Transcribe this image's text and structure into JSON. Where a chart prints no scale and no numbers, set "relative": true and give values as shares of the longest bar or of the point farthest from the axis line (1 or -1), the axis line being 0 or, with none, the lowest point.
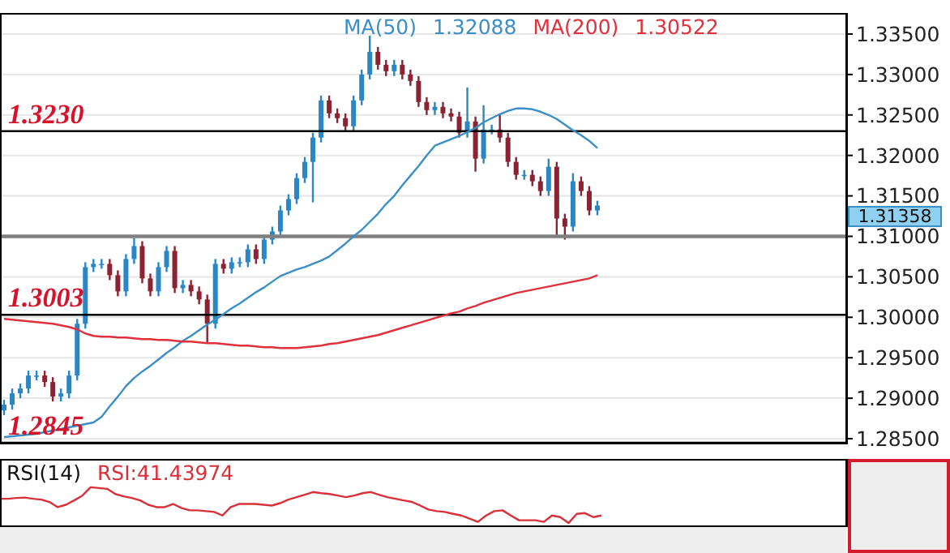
{
  "chart_data": [
    {
      "type": "candlestick",
      "categories": [
        null,
        null,
        null,
        null,
        null,
        null,
        null,
        null,
        null,
        null,
        null,
        null,
        null,
        null,
        null,
        null,
        null,
        null,
        null,
        null,
        null,
        null,
        null,
        null,
        null,
        null,
        null,
        null,
        null,
        null,
        null,
        null,
        null,
        null,
        null,
        null,
        null,
        null,
        null,
        null,
        null,
        null,
        null,
        null,
        null,
        null,
        null,
        null,
        null,
        null,
        null,
        null,
        null,
        null,
        null,
        null,
        null,
        null,
        null,
        null,
        null,
        null,
        null,
        null,
        null,
        null,
        null,
        null,
        null,
        null,
        null,
        null,
        null,
        null
      ],
      "ylim": [
        1.2843,
        1.3376
      ],
      "yticks": [
        {
          "value": 1.285,
          "label": "1.28500"
        },
        {
          "value": 1.29,
          "label": "1.29000"
        },
        {
          "value": 1.295,
          "label": "1.29500"
        },
        {
          "value": 1.3,
          "label": "1.30000"
        },
        {
          "value": 1.305,
          "label": "1.30500"
        },
        {
          "value": 1.31,
          "label": "1.31000"
        },
        {
          "value": 1.315,
          "label": "1.31500"
        },
        {
          "value": 1.32,
          "label": "1.32000"
        },
        {
          "value": 1.325,
          "label": "1.32500"
        },
        {
          "value": 1.33,
          "label": "1.33000"
        },
        {
          "value": 1.335,
          "label": "1.33500"
        }
      ],
      "grid": "y",
      "legend": "top",
      "tick_labels": "y",
      "annotations": [
        "1.32088",
        "1.30522",
        "1.31358"
      ],
      "ref_lines": [
        {
          "axis": "y",
          "value": 1.323,
          "label": "1.3230",
          "color": "#000000"
        },
        {
          "axis": "y",
          "value": 1.3003,
          "label": "1.3003",
          "color": "#000000"
        },
        {
          "axis": "y",
          "value": 1.2845,
          "label": "1.2845",
          "color": "#000000"
        },
        {
          "axis": "y",
          "value": 1.31,
          "color": "#808080"
        }
      ],
      "series": [
        {
          "type": "candlestick",
          "ohlc": [
            [
              1.2885,
              1.2898,
              1.2879,
              1.2892
            ],
            [
              1.2892,
              1.2912,
              1.2886,
              1.2906
            ],
            [
              1.2906,
              1.2918,
              1.29,
              1.2912
            ],
            [
              1.2912,
              1.2934,
              1.2906,
              1.2928
            ],
            [
              1.2928,
              1.2934,
              1.2922,
              1.2928
            ],
            [
              1.2928,
              1.2934,
              1.2914,
              1.292
            ],
            [
              1.292,
              1.2926,
              1.2896,
              1.2902
            ],
            [
              1.2902,
              1.2912,
              1.2896,
              1.2906
            ],
            [
              1.2906,
              1.2934,
              1.29,
              1.2928
            ],
            [
              1.2928,
              1.2998,
              1.2922,
              1.2992
            ],
            [
              1.2992,
              1.3068,
              1.2986,
              1.3062
            ],
            [
              1.3062,
              1.3072,
              1.3056,
              1.3066
            ],
            [
              1.3066,
              1.3072,
              1.306,
              1.3066
            ],
            [
              1.3066,
              1.3072,
              1.3046,
              1.3052
            ],
            [
              1.3052,
              1.3058,
              1.3026,
              1.3032
            ],
            [
              1.3032,
              1.3078,
              1.3026,
              1.3072
            ],
            [
              1.3072,
              1.3098,
              1.3066,
              1.3088
            ],
            [
              1.3088,
              1.3094,
              1.3042,
              1.3048
            ],
            [
              1.3048,
              1.3054,
              1.3026,
              1.3032
            ],
            [
              1.3032,
              1.3068,
              1.3026,
              1.3062
            ],
            [
              1.3062,
              1.3088,
              1.3056,
              1.3082
            ],
            [
              1.3082,
              1.3088,
              1.303,
              1.3036
            ],
            [
              1.3036,
              1.3046,
              1.303,
              1.304
            ],
            [
              1.304,
              1.3046,
              1.3026,
              1.3032
            ],
            [
              1.3032,
              1.3038,
              1.3016,
              1.3022
            ],
            [
              1.3022,
              1.3028,
              1.2968,
              1.2992
            ],
            [
              1.2992,
              1.3072,
              1.2986,
              1.3066
            ],
            [
              1.3066,
              1.3072,
              1.3054,
              1.306
            ],
            [
              1.306,
              1.3074,
              1.3054,
              1.3068
            ],
            [
              1.3068,
              1.3074,
              1.3062,
              1.3068
            ],
            [
              1.3068,
              1.309,
              1.3062,
              1.3084
            ],
            [
              1.3084,
              1.309,
              1.3066,
              1.3072
            ],
            [
              1.3072,
              1.3102,
              1.3066,
              1.3096
            ],
            [
              1.3096,
              1.3112,
              1.309,
              1.3106
            ],
            [
              1.3106,
              1.3138,
              1.31,
              1.3132
            ],
            [
              1.3132,
              1.3152,
              1.3126,
              1.3146
            ],
            [
              1.3146,
              1.3178,
              1.314,
              1.3172
            ],
            [
              1.3172,
              1.3198,
              1.3166,
              1.3192
            ],
            [
              1.3192,
              1.3228,
              1.3142,
              1.3222
            ],
            [
              1.3222,
              1.3274,
              1.3216,
              1.3268
            ],
            [
              1.3268,
              1.3274,
              1.3246,
              1.3252
            ],
            [
              1.3252,
              1.3258,
              1.324,
              1.3246
            ],
            [
              1.3246,
              1.3252,
              1.323,
              1.3236
            ],
            [
              1.3236,
              1.3274,
              1.323,
              1.3268
            ],
            [
              1.3268,
              1.3306,
              1.3262,
              1.33
            ],
            [
              1.33,
              1.3348,
              1.3294,
              1.3328
            ],
            [
              1.3328,
              1.3334,
              1.3306,
              1.3312
            ],
            [
              1.3312,
              1.3318,
              1.3298,
              1.3304
            ],
            [
              1.3304,
              1.3318,
              1.3298,
              1.3312
            ],
            [
              1.3312,
              1.3318,
              1.3294,
              1.33
            ],
            [
              1.33,
              1.3306,
              1.3286,
              1.3292
            ],
            [
              1.3292,
              1.3298,
              1.326,
              1.3266
            ],
            [
              1.3266,
              1.3272,
              1.325,
              1.3256
            ],
            [
              1.3256,
              1.3266,
              1.325,
              1.326
            ],
            [
              1.326,
              1.3266,
              1.3246,
              1.3252
            ],
            [
              1.3252,
              1.3258,
              1.3242,
              1.3248
            ],
            [
              1.3248,
              1.3254,
              1.3222,
              1.3228
            ],
            [
              1.3228,
              1.3284,
              1.3222,
              1.3242
            ],
            [
              1.3242,
              1.3248,
              1.318,
              1.3196
            ],
            [
              1.3196,
              1.3262,
              1.319,
              1.3232
            ],
            [
              1.3232,
              1.3238,
              1.3226,
              1.3232
            ],
            [
              1.3232,
              1.325,
              1.3216,
              1.3222
            ],
            [
              1.3222,
              1.3228,
              1.3186,
              1.3192
            ],
            [
              1.3192,
              1.3198,
              1.317,
              1.3176
            ],
            [
              1.3176,
              1.3182,
              1.317,
              1.3176
            ],
            [
              1.3176,
              1.3182,
              1.3162,
              1.3168
            ],
            [
              1.3168,
              1.3174,
              1.315,
              1.3156
            ],
            [
              1.3156,
              1.3196,
              1.315,
              1.3186
            ],
            [
              1.3186,
              1.3192,
              1.31,
              1.3122
            ],
            [
              1.3122,
              1.3128,
              1.3096,
              1.3112
            ],
            [
              1.3112,
              1.3178,
              1.3106,
              1.3168
            ],
            [
              1.3168,
              1.3174,
              1.315,
              1.3156
            ],
            [
              1.3156,
              1.3162,
              1.3126,
              1.3132
            ],
            [
              1.3132,
              1.3144,
              1.3126,
              1.3138
            ]
          ],
          "colors": [
            "#2b86c5",
            "#2b86c5",
            "#2b86c5",
            "#2b86c5",
            "#2b86c5",
            "#8c2332",
            "#8c2332",
            "#2b86c5",
            "#2b86c5",
            "#2b86c5",
            "#2b86c5",
            "#2b86c5",
            "#2b86c5",
            "#8c2332",
            "#8c2332",
            "#2b86c5",
            "#2b86c5",
            "#8c2332",
            "#8c2332",
            "#2b86c5",
            "#2b86c5",
            "#8c2332",
            "#2b86c5",
            "#8c2332",
            "#8c2332",
            "#8c2332",
            "#2b86c5",
            "#8c2332",
            "#2b86c5",
            "#2b86c5",
            "#2b86c5",
            "#8c2332",
            "#2b86c5",
            "#2b86c5",
            "#2b86c5",
            "#2b86c5",
            "#2b86c5",
            "#2b86c5",
            "#2b86c5",
            "#2b86c5",
            "#8c2332",
            "#8c2332",
            "#8c2332",
            "#2b86c5",
            "#2b86c5",
            "#2b86c5",
            "#8c2332",
            "#8c2332",
            "#2b86c5",
            "#8c2332",
            "#8c2332",
            "#8c2332",
            "#8c2332",
            "#2b86c5",
            "#8c2332",
            "#8c2332",
            "#8c2332",
            "#2b86c5",
            "#8c2332",
            "#2b86c5",
            "#2b86c5",
            "#8c2332",
            "#8c2332",
            "#8c2332",
            "#2b86c5",
            "#8c2332",
            "#8c2332",
            "#2b86c5",
            "#8c2332",
            "#8c2332",
            "#2b86c5",
            "#8c2332",
            "#8c2332",
            "#2b86c5"
          ]
        },
        {
          "type": "line",
          "name": "MA(50)",
          "color": "#3a8fc7",
          "values": [
            1.2852,
            1.2853,
            1.2854,
            1.2855,
            1.2856,
            1.2858,
            1.286,
            1.2862,
            1.2864,
            1.2866,
            1.2868,
            1.287,
            1.2877,
            1.289,
            1.2902,
            1.2915,
            1.2925,
            1.2933,
            1.294,
            1.2948,
            1.2956,
            1.2963,
            1.2971,
            1.2977,
            1.2984,
            1.2991,
            1.2997,
            1.3004,
            1.3011,
            1.3017,
            1.3024,
            1.3031,
            1.3037,
            1.3044,
            1.3051,
            1.3055,
            1.3059,
            1.3062,
            1.3066,
            1.307,
            1.3075,
            1.3083,
            1.3091,
            1.31,
            1.3108,
            1.3118,
            1.3128,
            1.314,
            1.315,
            1.3163,
            1.3175,
            1.3187,
            1.32,
            1.3212,
            1.3216,
            1.322,
            1.3224,
            1.3229,
            1.3234,
            1.3241,
            1.3246,
            1.3251,
            1.3255,
            1.3258,
            1.3258,
            1.3257,
            1.3254,
            1.325,
            1.3245,
            1.3238,
            1.3231,
            1.3225,
            1.3218,
            1.3209
          ]
        },
        {
          "type": "line",
          "name": "MA(200)",
          "color": "#e0303c",
          "values": [
            1.2998,
            1.2997,
            1.2996,
            1.2995,
            1.2994,
            1.2993,
            1.2992,
            1.299,
            1.2988,
            1.2985,
            1.298,
            1.2977,
            1.2976,
            1.2976,
            1.2975,
            1.2975,
            1.2974,
            1.2973,
            1.2973,
            1.2972,
            1.2972,
            1.2971,
            1.297,
            1.297,
            1.2969,
            1.2968,
            1.2968,
            1.2967,
            1.2966,
            1.2965,
            1.2965,
            1.2964,
            1.2963,
            1.2963,
            1.2962,
            1.2962,
            1.2962,
            1.2963,
            1.2964,
            1.2965,
            1.2967,
            1.2968,
            1.297,
            1.2972,
            1.2974,
            1.2976,
            1.2978,
            1.2981,
            1.2984,
            1.2987,
            1.299,
            1.2993,
            1.2996,
            1.2999,
            1.3002,
            1.3005,
            1.3007,
            1.3011,
            1.3014,
            1.3018,
            1.3021,
            1.3024,
            1.3027,
            1.303,
            1.3032,
            1.3034,
            1.3036,
            1.3038,
            1.304,
            1.3042,
            1.3044,
            1.3046,
            1.3048,
            1.3052
          ]
        }
      ]
    },
    {
      "type": "line",
      "title": "RSI(14)",
      "relative": true,
      "legend": "top left",
      "tick_labels": false,
      "categories": [
        null,
        null,
        null,
        null,
        null,
        null,
        null,
        null,
        null,
        null,
        null,
        null,
        null,
        null,
        null,
        null,
        null,
        null,
        null,
        null,
        null,
        null,
        null,
        null,
        null,
        null,
        null,
        null,
        null,
        null,
        null,
        null,
        null,
        null,
        null,
        null,
        null,
        null,
        null,
        null,
        null,
        null,
        null,
        null,
        null,
        null,
        null,
        null,
        null,
        null,
        null,
        null,
        null,
        null,
        null,
        null,
        null,
        null,
        null,
        null,
        null,
        null,
        null,
        null,
        null,
        null,
        null,
        null,
        null,
        null,
        null,
        null,
        null,
        null
      ],
      "series": [
        {
          "name": "RSI:41.43974",
          "color": "#d9303a",
          "values": [
            0.71,
            0.71,
            0.73,
            0.74,
            0.71,
            0.69,
            0.63,
            0.5,
            0.56,
            0.67,
            0.79,
            1,
            0.98,
            0.96,
            0.83,
            0.77,
            0.73,
            0.67,
            0.56,
            0.5,
            0.5,
            0.58,
            0.48,
            0.42,
            0.42,
            0.4,
            0.38,
            0.29,
            0.5,
            0.58,
            0.58,
            0.58,
            0.56,
            0.54,
            0.6,
            0.69,
            0.75,
            0.81,
            0.88,
            0.85,
            0.83,
            0.79,
            0.75,
            0.79,
            0.85,
            0.88,
            0.81,
            0.75,
            0.71,
            0.67,
            0.63,
            0.54,
            0.44,
            0.4,
            0.38,
            0.33,
            0.29,
            0.21,
            0.13,
            0.29,
            0.4,
            0.42,
            0.29,
            0.17,
            0.17,
            0.17,
            0.13,
            0.29,
            0.25,
            0.1,
            0.33,
            0.35,
            0.25,
            0.29
          ]
        }
      ]
    }
  ]
}
